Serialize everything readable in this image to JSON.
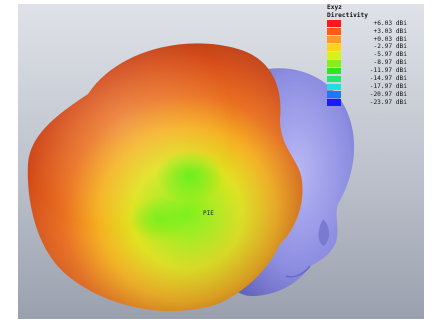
{
  "legend": {
    "title_line1": "Exyz",
    "title_line2": "Directivity",
    "entries": [
      {
        "label": "+6.03 dBi",
        "color": "#ff1a1a"
      },
      {
        "label": "+3.03 dBi",
        "color": "#ff5a1a"
      },
      {
        "label": "+0.03 dBi",
        "color": "#ff9a2a"
      },
      {
        "label": "-2.97 dBi",
        "color": "#ffd21e"
      },
      {
        "label": "-5.97 dBi",
        "color": "#d6f21e"
      },
      {
        "label": "-8.97 dBi",
        "color": "#86ee1e"
      },
      {
        "label": "-11.97 dBi",
        "color": "#2ee81e"
      },
      {
        "label": "-14.97 dBi",
        "color": "#1ee87a"
      },
      {
        "label": "-17.97 dBi",
        "color": "#1ee0e0"
      },
      {
        "label": "-20.97 dBi",
        "color": "#1a7aff"
      },
      {
        "label": "-23.97 dBi",
        "color": "#1a1aff"
      }
    ]
  },
  "scene": {
    "feed_label": "PIE",
    "head_color": "#8c8ce6",
    "background": "#c8ccd6"
  }
}
